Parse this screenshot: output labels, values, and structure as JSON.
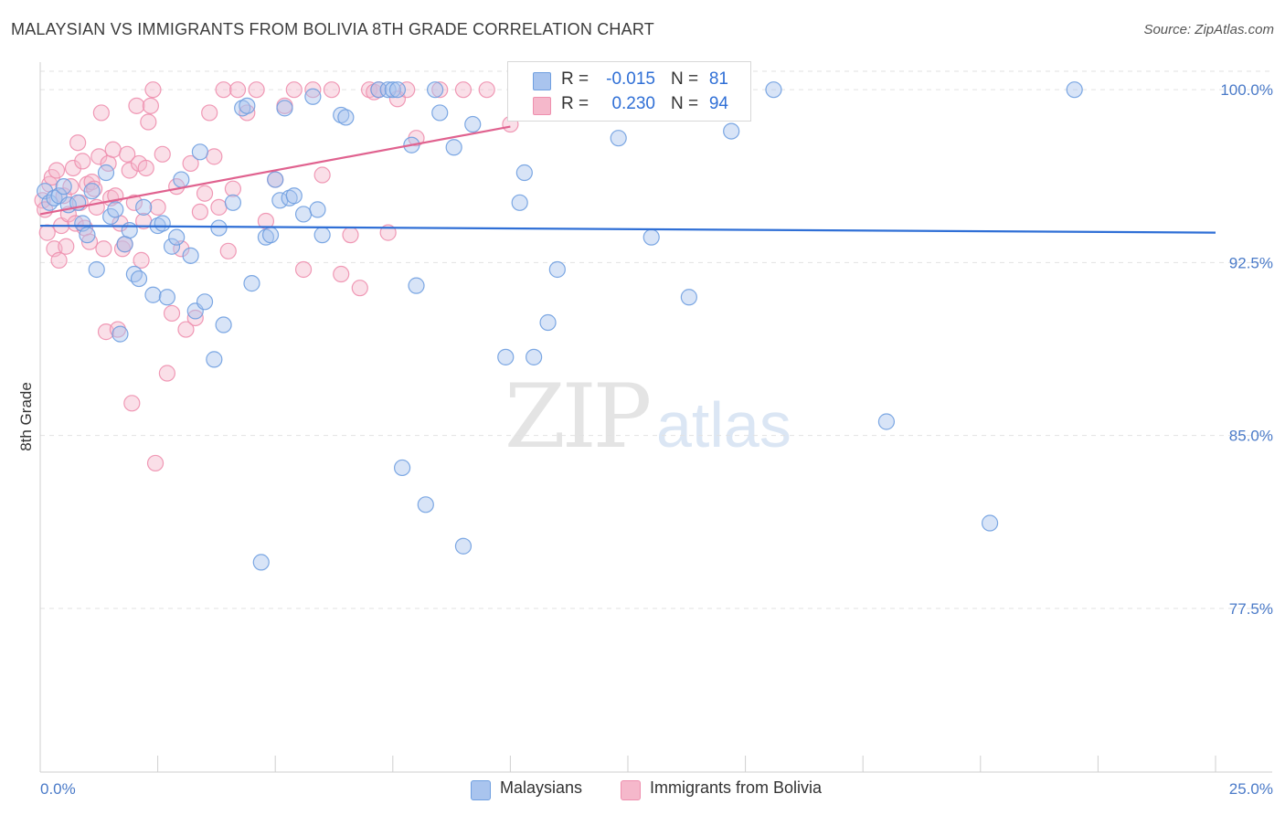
{
  "header": {
    "title": "MALAYSIAN VS IMMIGRANTS FROM BOLIVIA 8TH GRADE CORRELATION CHART",
    "source": "Source: ZipAtlas.com"
  },
  "watermark": {
    "zip": "ZIP",
    "atlas": "atlas"
  },
  "legend": {
    "series1": {
      "r_label": "R =",
      "r_value": "-0.015",
      "n_label": "N =",
      "n_value": "81",
      "color": "#a9c4ee"
    },
    "series2": {
      "r_label": "R =",
      "r_value": "0.230",
      "n_label": "N =",
      "n_value": "94",
      "color": "#f5b8cb"
    }
  },
  "bottom_legend": {
    "series1": "Malaysians",
    "series2": "Immigrants from Bolivia"
  },
  "chart_data": {
    "type": "scatter",
    "title": "MALAYSIAN VS IMMIGRANTS FROM BOLIVIA 8TH GRADE CORRELATION CHART",
    "xlabel": "",
    "ylabel": "8th Grade",
    "xlim": [
      0,
      25
    ],
    "ylim": [
      70.4,
      100.8
    ],
    "x_tick_labels": [
      "0.0%",
      "25.0%"
    ],
    "y_ticks": [
      100.0,
      92.5,
      85.0,
      77.5
    ],
    "y_tick_labels": [
      "100.0%",
      "92.5%",
      "85.0%",
      "77.5%"
    ],
    "grid": "horizontal dashed",
    "series": [
      {
        "name": "Malaysians",
        "color": "#6f9fe0",
        "fill": "#a9c4ee",
        "trend": {
          "x": [
            0.0,
            25.0
          ],
          "y": [
            94.1,
            93.8
          ],
          "color": "#2f6fd6"
        },
        "points": [
          [
            0.1,
            95.6
          ],
          [
            0.2,
            95.1
          ],
          [
            0.3,
            95.3
          ],
          [
            0.4,
            95.4
          ],
          [
            0.5,
            95.8
          ],
          [
            0.6,
            95.0
          ],
          [
            0.8,
            95.1
          ],
          [
            0.9,
            94.2
          ],
          [
            1.0,
            93.7
          ],
          [
            1.1,
            95.6
          ],
          [
            1.2,
            92.2
          ],
          [
            1.4,
            96.4
          ],
          [
            1.5,
            94.5
          ],
          [
            1.6,
            94.8
          ],
          [
            1.7,
            89.4
          ],
          [
            1.8,
            93.3
          ],
          [
            1.9,
            93.9
          ],
          [
            2.0,
            92.0
          ],
          [
            2.1,
            91.8
          ],
          [
            2.2,
            94.9
          ],
          [
            2.4,
            91.1
          ],
          [
            2.5,
            94.1
          ],
          [
            2.6,
            94.2
          ],
          [
            2.7,
            91.0
          ],
          [
            2.8,
            93.2
          ],
          [
            2.9,
            93.6
          ],
          [
            3.0,
            96.1
          ],
          [
            3.2,
            92.8
          ],
          [
            3.3,
            90.4
          ],
          [
            3.4,
            97.3
          ],
          [
            3.5,
            90.8
          ],
          [
            3.7,
            88.3
          ],
          [
            3.8,
            94.0
          ],
          [
            3.9,
            89.8
          ],
          [
            4.1,
            95.1
          ],
          [
            4.3,
            99.2
          ],
          [
            4.4,
            99.3
          ],
          [
            4.5,
            91.6
          ],
          [
            4.7,
            79.5
          ],
          [
            4.8,
            93.6
          ],
          [
            4.9,
            93.7
          ],
          [
            5.0,
            96.1
          ],
          [
            5.1,
            95.2
          ],
          [
            5.2,
            99.2
          ],
          [
            5.3,
            95.3
          ],
          [
            5.4,
            95.4
          ],
          [
            5.6,
            94.6
          ],
          [
            5.8,
            99.7
          ],
          [
            5.9,
            94.8
          ],
          [
            6.0,
            93.7
          ],
          [
            6.4,
            98.9
          ],
          [
            6.5,
            98.8
          ],
          [
            7.2,
            100.0
          ],
          [
            7.4,
            100.0
          ],
          [
            7.5,
            100.0
          ],
          [
            7.6,
            100.0
          ],
          [
            7.7,
            83.6
          ],
          [
            7.9,
            97.6
          ],
          [
            8.0,
            91.5
          ],
          [
            8.2,
            82.0
          ],
          [
            8.4,
            100.0
          ],
          [
            8.5,
            99.0
          ],
          [
            8.8,
            97.5
          ],
          [
            9.0,
            80.2
          ],
          [
            9.2,
            98.5
          ],
          [
            9.9,
            88.4
          ],
          [
            10.2,
            95.1
          ],
          [
            10.3,
            96.4
          ],
          [
            10.5,
            88.4
          ],
          [
            10.8,
            89.9
          ],
          [
            11.0,
            92.2
          ],
          [
            11.6,
            100.0
          ],
          [
            12.3,
            97.9
          ],
          [
            13.0,
            93.6
          ],
          [
            13.4,
            100.0
          ],
          [
            13.8,
            91.0
          ],
          [
            14.7,
            98.2
          ],
          [
            15.6,
            100.0
          ],
          [
            18.0,
            85.6
          ],
          [
            20.2,
            81.2
          ],
          [
            22.0,
            100.0
          ]
        ]
      },
      {
        "name": "Immigrants from Bolivia",
        "color": "#ee8fae",
        "fill": "#f5b8cb",
        "trend": {
          "x": [
            0.0,
            10.0
          ],
          "y": [
            94.6,
            98.4
          ],
          "color": "#e0628f"
        },
        "points": [
          [
            0.05,
            95.2
          ],
          [
            0.1,
            94.8
          ],
          [
            0.15,
            93.8
          ],
          [
            0.2,
            95.9
          ],
          [
            0.25,
            96.2
          ],
          [
            0.3,
            93.1
          ],
          [
            0.35,
            96.5
          ],
          [
            0.4,
            92.6
          ],
          [
            0.45,
            94.1
          ],
          [
            0.5,
            95.4
          ],
          [
            0.55,
            93.2
          ],
          [
            0.6,
            94.6
          ],
          [
            0.65,
            95.8
          ],
          [
            0.7,
            96.6
          ],
          [
            0.75,
            94.2
          ],
          [
            0.8,
            97.7
          ],
          [
            0.85,
            95.1
          ],
          [
            0.9,
            96.9
          ],
          [
            0.95,
            94.0
          ],
          [
            1.0,
            95.9
          ],
          [
            1.05,
            93.4
          ],
          [
            1.1,
            96.0
          ],
          [
            1.15,
            95.7
          ],
          [
            1.2,
            94.9
          ],
          [
            1.25,
            97.1
          ],
          [
            1.3,
            99.0
          ],
          [
            1.35,
            93.1
          ],
          [
            1.4,
            89.5
          ],
          [
            1.45,
            96.8
          ],
          [
            1.5,
            95.3
          ],
          [
            1.55,
            97.4
          ],
          [
            1.6,
            95.4
          ],
          [
            1.65,
            89.6
          ],
          [
            1.7,
            94.2
          ],
          [
            1.75,
            93.1
          ],
          [
            1.8,
            93.3
          ],
          [
            1.85,
            97.2
          ],
          [
            1.9,
            96.5
          ],
          [
            1.95,
            86.4
          ],
          [
            2.0,
            95.1
          ],
          [
            2.05,
            99.3
          ],
          [
            2.1,
            96.8
          ],
          [
            2.15,
            92.6
          ],
          [
            2.2,
            94.3
          ],
          [
            2.25,
            96.6
          ],
          [
            2.3,
            98.6
          ],
          [
            2.35,
            99.3
          ],
          [
            2.4,
            100.0
          ],
          [
            2.45,
            83.8
          ],
          [
            2.5,
            94.9
          ],
          [
            2.6,
            97.2
          ],
          [
            2.7,
            87.7
          ],
          [
            2.8,
            90.3
          ],
          [
            2.9,
            95.8
          ],
          [
            3.0,
            93.1
          ],
          [
            3.1,
            89.6
          ],
          [
            3.2,
            96.8
          ],
          [
            3.3,
            90.1
          ],
          [
            3.4,
            94.7
          ],
          [
            3.5,
            95.5
          ],
          [
            3.6,
            99.0
          ],
          [
            3.7,
            97.1
          ],
          [
            3.8,
            94.9
          ],
          [
            3.9,
            100.0
          ],
          [
            4.0,
            93.0
          ],
          [
            4.1,
            95.7
          ],
          [
            4.2,
            100.0
          ],
          [
            4.4,
            99.0
          ],
          [
            4.6,
            100.0
          ],
          [
            4.8,
            94.3
          ],
          [
            5.0,
            96.1
          ],
          [
            5.2,
            99.3
          ],
          [
            5.4,
            100.0
          ],
          [
            5.6,
            92.2
          ],
          [
            5.8,
            100.0
          ],
          [
            6.0,
            96.3
          ],
          [
            6.2,
            100.0
          ],
          [
            6.4,
            92.0
          ],
          [
            6.6,
            93.7
          ],
          [
            6.8,
            91.4
          ],
          [
            7.0,
            100.0
          ],
          [
            7.1,
            99.9
          ],
          [
            7.2,
            100.0
          ],
          [
            7.4,
            93.8
          ],
          [
            7.6,
            99.6
          ],
          [
            7.8,
            100.0
          ],
          [
            8.0,
            97.9
          ],
          [
            8.5,
            100.0
          ],
          [
            9.0,
            100.0
          ],
          [
            9.5,
            100.0
          ],
          [
            10.0,
            98.5
          ],
          [
            11.0,
            100.0
          ],
          [
            12.0,
            100.0
          ],
          [
            13.0,
            100.0
          ]
        ]
      }
    ]
  }
}
